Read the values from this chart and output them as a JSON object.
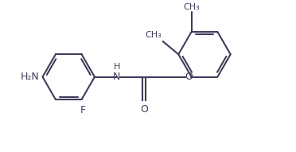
{
  "bg_color": "#ffffff",
  "line_color": "#3d3d5c",
  "line_width": 1.5,
  "font_size": 9,
  "figsize": [
    3.72,
    1.91
  ],
  "dpi": 100,
  "xlim": [
    0,
    10.5
  ],
  "ylim": [
    0,
    5.5
  ]
}
